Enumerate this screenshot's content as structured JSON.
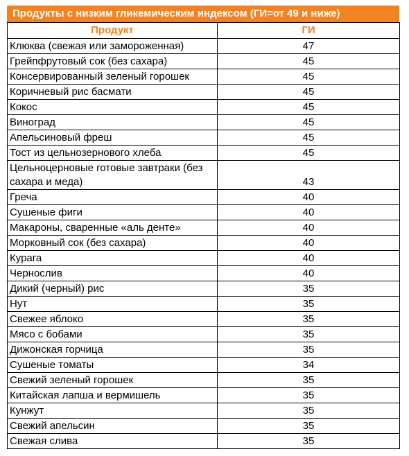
{
  "title": "Продукты с низким гликемическим индексом (ГИ=от 49 и ниже)",
  "colors": {
    "accent": "#f58220"
  },
  "table": {
    "headers": [
      "Продукт",
      "ГИ"
    ],
    "rows": [
      {
        "name": "Клюква (свежая или замороженная)",
        "gi": "47"
      },
      {
        "name": "Грейпфрутовый сок (без сахара)",
        "gi": "45"
      },
      {
        "name": "Консервированный зеленый горошек",
        "gi": "45"
      },
      {
        "name": "Коричневый рис басмати",
        "gi": "45"
      },
      {
        "name": "Кокос",
        "gi": "45"
      },
      {
        "name": "Виноград",
        "gi": "45"
      },
      {
        "name": "Апельсиновый фреш",
        "gi": "45"
      },
      {
        "name": "Тост из цельнозернового хлеба",
        "gi": "45"
      },
      {
        "name": "Цельноцерновые готовые завтраки (без сахара и меда)",
        "gi": "43"
      },
      {
        "name": "Греча",
        "gi": "40"
      },
      {
        "name": "Сушеные фиги",
        "gi": "40"
      },
      {
        "name": "Макароны, сваренные «аль денте»",
        "gi": "40"
      },
      {
        "name": "Морковный сок (без сахара)",
        "gi": "40"
      },
      {
        "name": "Курага",
        "gi": "40"
      },
      {
        "name": "Чернослив",
        "gi": "40"
      },
      {
        "name": "Дикий (черный) рис",
        "gi": "35"
      },
      {
        "name": "Нут",
        "gi": "35"
      },
      {
        "name": "Свежее яблоко",
        "gi": "35"
      },
      {
        "name": "Мясо с бобами",
        "gi": "35"
      },
      {
        "name": "Дижонская горчица",
        "gi": "35"
      },
      {
        "name": "Сушеные томаты",
        "gi": "34"
      },
      {
        "name": "Свежий зеленый горошек",
        "gi": "35"
      },
      {
        "name": "Китайская лапша и вермишель",
        "gi": "35"
      },
      {
        "name": "Кунжут",
        "gi": "35"
      },
      {
        "name": "Свежий апельсин",
        "gi": "35"
      },
      {
        "name": "Свежая слива",
        "gi": "35"
      }
    ]
  }
}
